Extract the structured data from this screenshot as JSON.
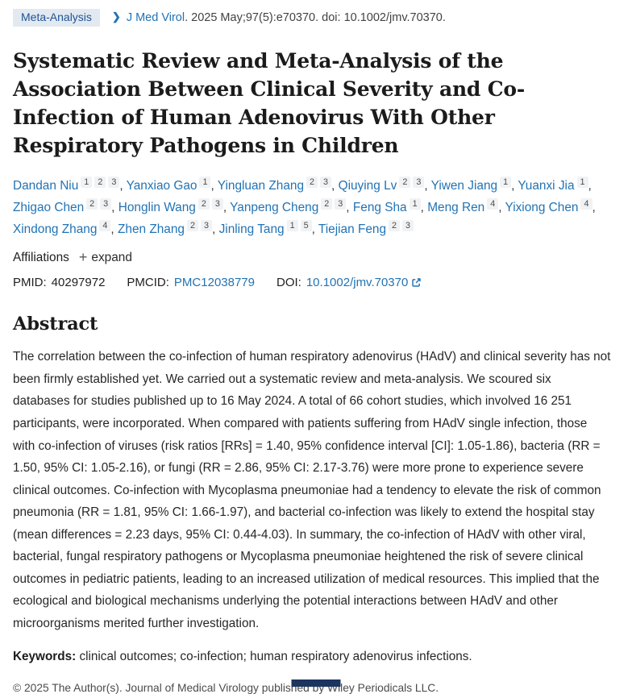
{
  "badge": {
    "label": "Meta-Analysis"
  },
  "citation": {
    "journal": "J Med Virol",
    "details": ". 2025 May;97(5):e70370. doi: 10.1002/jmv.70370."
  },
  "title": "Systematic Review and Meta-Analysis of the Association Between Clinical Severity and Co-Infection of Human Adenovirus With Other Respiratory Pathogens in Children",
  "authors": [
    {
      "name": "Dandan Niu",
      "affiliations": [
        "1",
        "2",
        "3"
      ]
    },
    {
      "name": "Yanxiao Gao",
      "affiliations": [
        "1"
      ]
    },
    {
      "name": "Yingluan Zhang",
      "affiliations": [
        "2",
        "3"
      ]
    },
    {
      "name": "Qiuying Lv",
      "affiliations": [
        "2",
        "3"
      ]
    },
    {
      "name": "Yiwen Jiang",
      "affiliations": [
        "1"
      ]
    },
    {
      "name": "Yuanxi Jia",
      "affiliations": [
        "1"
      ]
    },
    {
      "name": "Zhigao Chen",
      "affiliations": [
        "2",
        "3"
      ]
    },
    {
      "name": "Honglin Wang",
      "affiliations": [
        "2",
        "3"
      ]
    },
    {
      "name": "Yanpeng Cheng",
      "affiliations": [
        "2",
        "3"
      ]
    },
    {
      "name": "Feng Sha",
      "affiliations": [
        "1"
      ]
    },
    {
      "name": "Meng Ren",
      "affiliations": [
        "4"
      ]
    },
    {
      "name": "Yixiong Chen",
      "affiliations": [
        "4"
      ]
    },
    {
      "name": "Xindong Zhang",
      "affiliations": [
        "4"
      ]
    },
    {
      "name": "Zhen Zhang",
      "affiliations": [
        "2",
        "3"
      ]
    },
    {
      "name": "Jinling Tang",
      "affiliations": [
        "1",
        "5"
      ]
    },
    {
      "name": "Tiejian Feng",
      "affiliations": [
        "2",
        "3"
      ]
    }
  ],
  "affiliations_row": {
    "label": "Affiliations",
    "expand_label": "expand"
  },
  "identifiers": {
    "pmid_label": "PMID:",
    "pmid": "40297972",
    "pmcid_label": "PMCID:",
    "pmcid": "PMC12038779",
    "doi_label": "DOI:",
    "doi": "10.1002/jmv.70370"
  },
  "abstract": {
    "heading": "Abstract",
    "text": "The correlation between the co-infection of human respiratory adenovirus (HAdV) and clinical severity has not been firmly established yet. We carried out a systematic review and meta-analysis. We scoured six databases for studies published up to 16 May 2024. A total of 66 cohort studies, which involved 16 251 participants, were incorporated. When compared with patients suffering from HAdV single infection, those with co-infection of viruses (risk ratios [RRs] = 1.40, 95% confidence interval [CI]: 1.05-1.86), bacteria (RR = 1.50, 95% CI: 1.05-2.16), or fungi (RR = 2.86, 95% CI: 2.17-3.76) were more prone to experience severe clinical outcomes. Co-infection with Mycoplasma pneumoniae had a tendency to elevate the risk of common pneumonia (RR = 1.81, 95% CI: 1.66-1.97), and bacterial co-infection was likely to extend the hospital stay (mean differences = 2.23 days, 95% CI: 0.44-4.03). In summary, the co-infection of HAdV with other viral, bacterial, fungal respiratory pathogens or Mycoplasma pneumoniae heightened the risk of severe clinical outcomes in pediatric patients, leading to an increased utilization of medical resources. This implied that the ecological and biological mechanisms underlying the potential interactions between HAdV and other microorganisms merited further investigation.",
    "keywords_label": "Keywords:",
    "keywords": "clinical outcomes; co-infection; human respiratory adenovirus infections."
  },
  "footer": {
    "copyright": "© 2025 The Author(s). Journal of Medical Virology published by Wiley Periodicals LLC."
  },
  "colors": {
    "link": "#2273b4",
    "badge_bg": "#e3e9f1",
    "badge_text": "#205493",
    "text": "#212121",
    "muted": "#424242",
    "chip_bg": "#f1f2f4",
    "chip_text": "#4d4d4d",
    "partial_box": "#1b355e"
  }
}
